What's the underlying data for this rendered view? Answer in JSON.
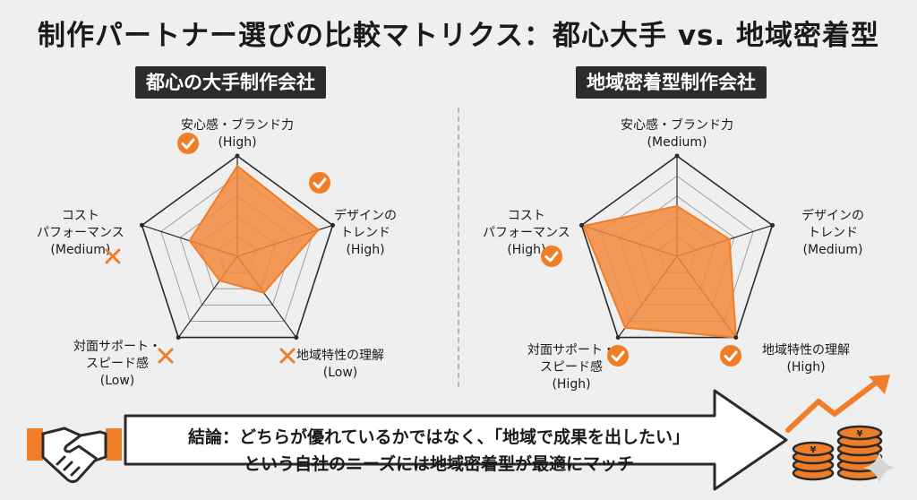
{
  "title": "制作パートナー選びの比較マトリクス：都心大手 vs. 地域密着型",
  "left_panel": {
    "label": "都心の大手制作会社",
    "axes": [
      {
        "name": "安心感・ブランド力",
        "level_text": "(High)",
        "value": 0.9,
        "mark": "check"
      },
      {
        "name": "デザインの\nトレンド",
        "level_text": "(High)",
        "value": 0.85,
        "mark": "check"
      },
      {
        "name": "地域特性の理解",
        "level_text": "(Low)",
        "value": 0.45,
        "mark": "cross"
      },
      {
        "name": "対面サポート・\nスピード感",
        "level_text": "(Low)",
        "value": 0.3,
        "mark": "cross"
      },
      {
        "name": "コスト\nパフォーマンス",
        "level_text": "(Medium)",
        "value": 0.5,
        "mark": "cross"
      }
    ]
  },
  "right_panel": {
    "label": "地域密着型制作会社",
    "axes": [
      {
        "name": "安心感・ブランド力",
        "level_text": "(Medium)",
        "value": 0.5,
        "mark": "none"
      },
      {
        "name": "デザインの\nトレンド",
        "level_text": "(Medium)",
        "value": 0.55,
        "mark": "none"
      },
      {
        "name": "地域特性の理解",
        "level_text": "(High)",
        "value": 1.0,
        "mark": "check"
      },
      {
        "name": "対面サポート・\nスピード感",
        "level_text": "(High)",
        "value": 0.88,
        "mark": "check"
      },
      {
        "name": "コスト\nパフォーマンス",
        "level_text": "(High)",
        "value": 0.98,
        "mark": "check"
      }
    ]
  },
  "conclusion": {
    "line1": "結論：どちらが優れているかではなく、「地域で成果を出したい」",
    "line2": "という自社のニーズには地域密着型が最適にマッチ"
  },
  "colors": {
    "accent": "#f07d28",
    "fill": "#f38a3c",
    "grid": "#2a2a2a",
    "grid_inner": "#9a9a9a",
    "label_bg": "#2c2c2c"
  },
  "icons": [
    "handshake-icon",
    "yen-coins-growth-icon",
    "check-icon",
    "cross-icon",
    "sparkle-icon"
  ]
}
